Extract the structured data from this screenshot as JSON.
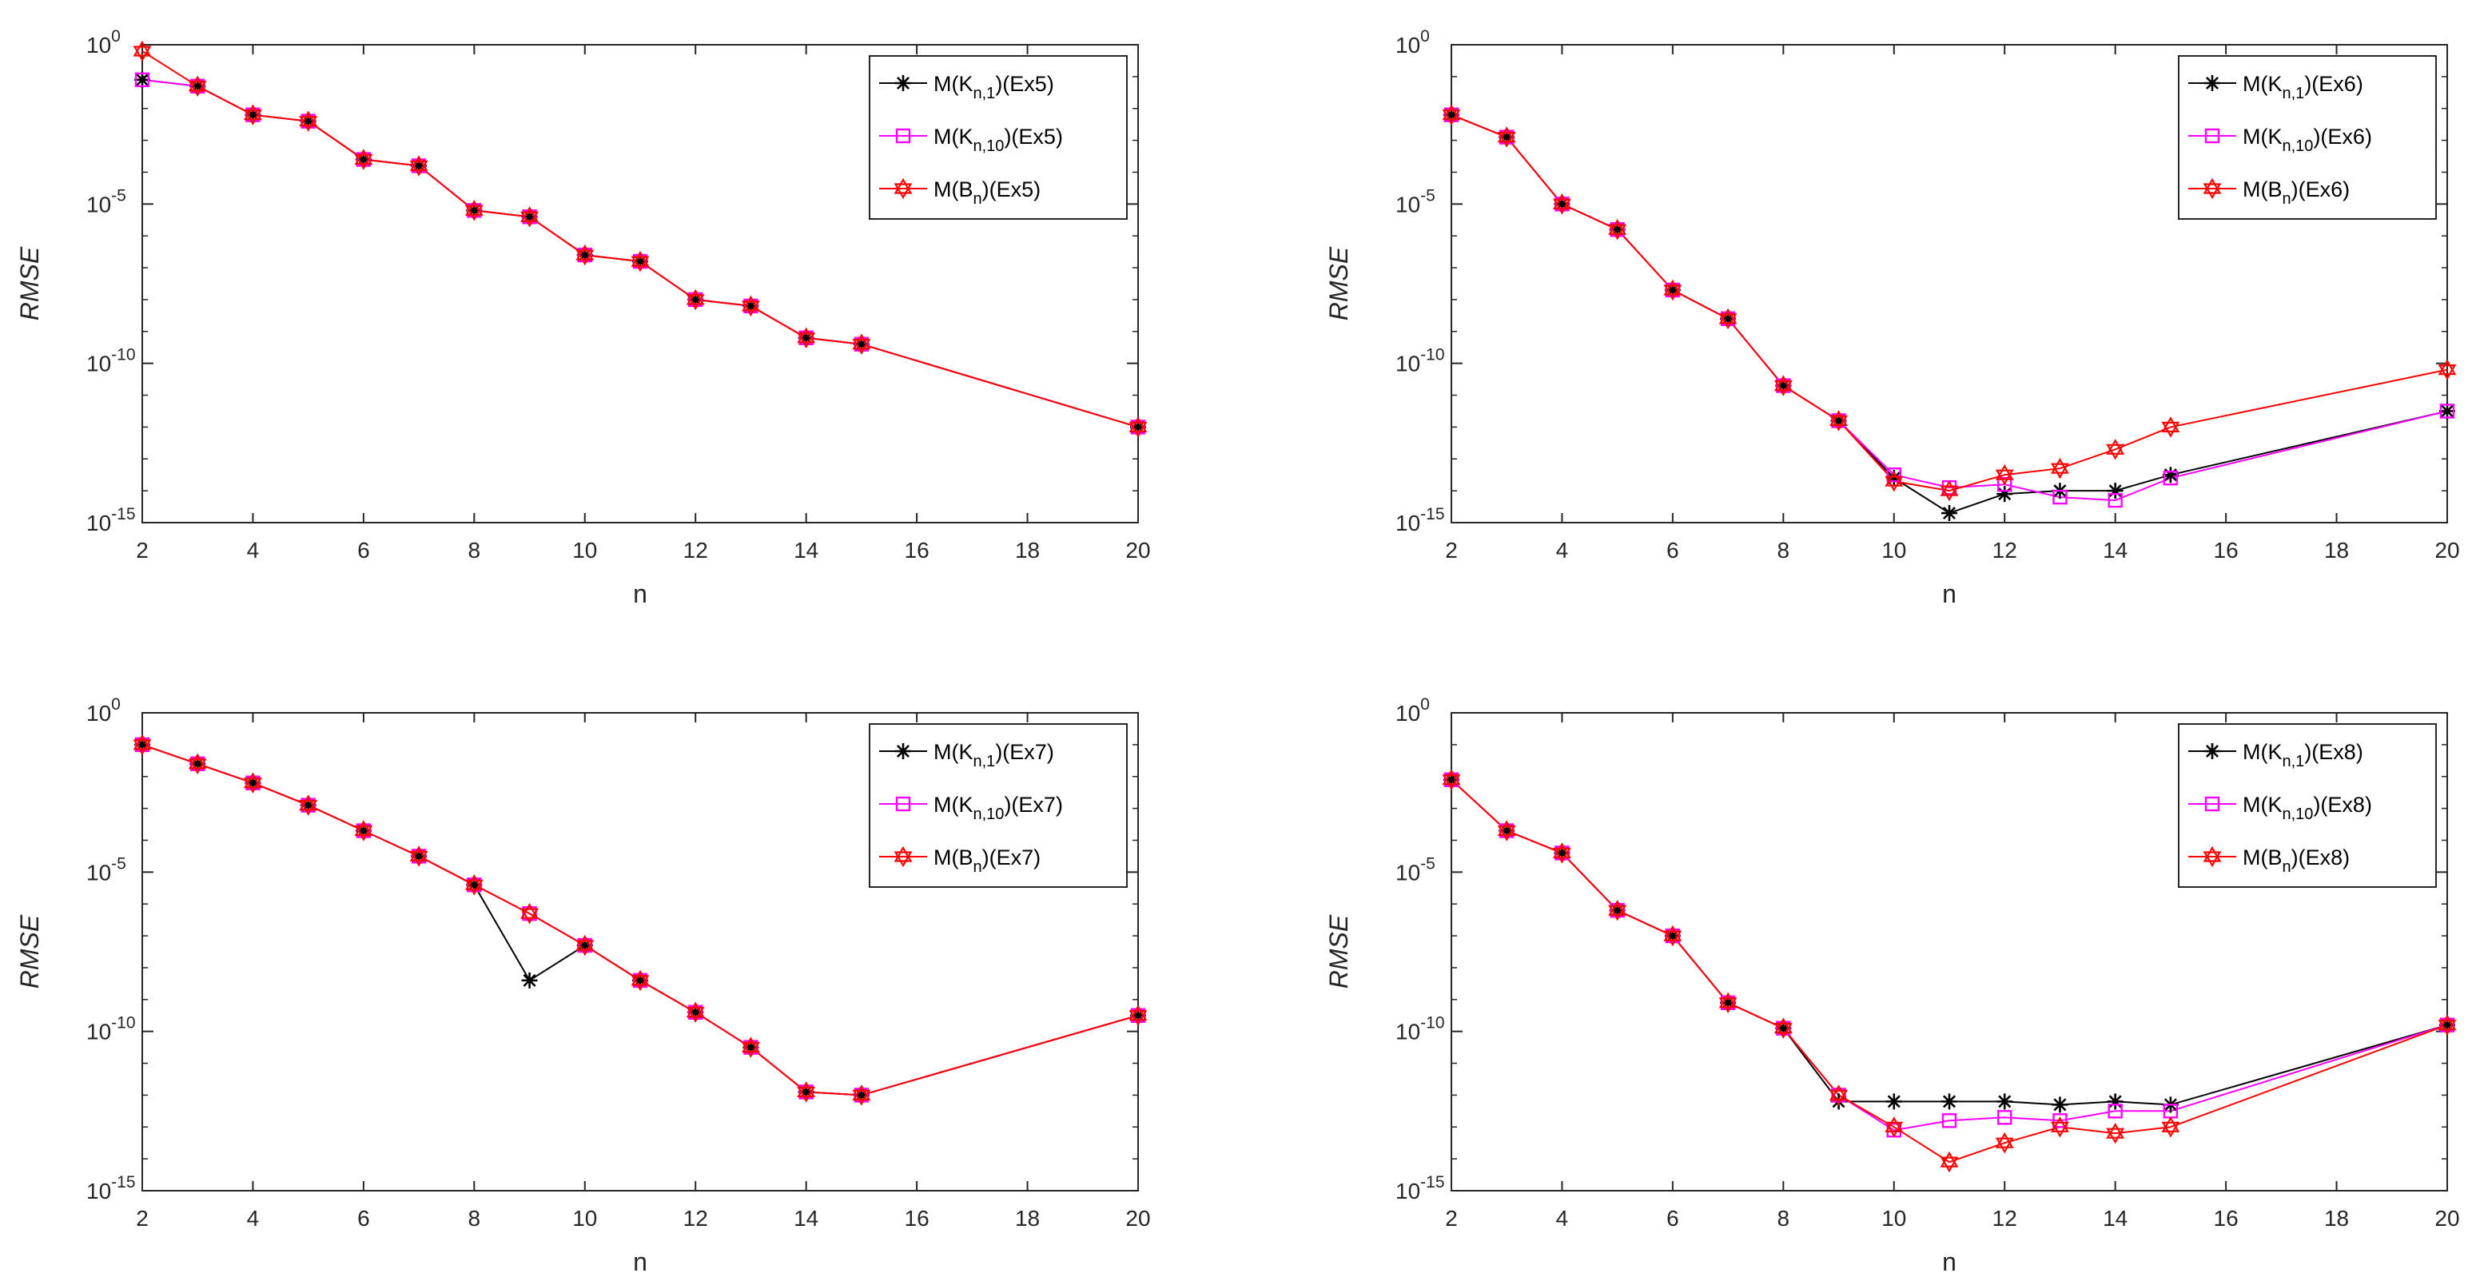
{
  "colors": {
    "axes": "#262626",
    "black_series": "#000000",
    "magenta_series": "#ff00ff",
    "red_series": "#ff0000"
  },
  "chart_data": [
    {
      "type": "line",
      "id": "ex5",
      "xlabel": "n",
      "ylabel": "RMSE",
      "yscale": "log",
      "xlim": [
        2,
        20
      ],
      "ylim_exp": [
        -15,
        0
      ],
      "x_ticks": [
        2,
        4,
        6,
        8,
        10,
        12,
        14,
        16,
        18,
        20
      ],
      "y_ticks": [
        {
          "base": "10",
          "exp": "0"
        },
        {
          "base": "10",
          "exp": "-5"
        },
        {
          "base": "10",
          "exp": "-10"
        },
        {
          "base": "10",
          "exp": "-15"
        }
      ],
      "legend_position": "top-right",
      "x": [
        2,
        3,
        4,
        5,
        6,
        7,
        8,
        9,
        10,
        11,
        12,
        13,
        14,
        15,
        20
      ],
      "series": [
        {
          "name": "M(K_{n,1})(Ex5)",
          "label_parts": [
            "M(K",
            "n,1",
            ")(Ex5)"
          ],
          "color": "#000000",
          "marker": "asterisk",
          "values_log10": [
            -1.1,
            -1.3,
            -2.2,
            -2.4,
            -3.6,
            -3.8,
            -5.2,
            -5.4,
            -6.6,
            -6.8,
            -8.0,
            -8.2,
            -9.2,
            -9.4,
            -12.0
          ]
        },
        {
          "name": "M(K_{n,10})(Ex5)",
          "label_parts": [
            "M(K",
            "n,10",
            ")(Ex5)"
          ],
          "color": "#ff00ff",
          "marker": "square",
          "values_log10": [
            -1.1,
            -1.3,
            -2.2,
            -2.4,
            -3.6,
            -3.8,
            -5.2,
            -5.4,
            -6.6,
            -6.8,
            -8.0,
            -8.2,
            -9.2,
            -9.4,
            -12.0
          ]
        },
        {
          "name": "M(B_n)(Ex5)",
          "label_parts": [
            "M(B",
            "n",
            ")(Ex5)"
          ],
          "color": "#ff0000",
          "marker": "hexagram",
          "values_log10": [
            -0.2,
            -1.3,
            -2.2,
            -2.4,
            -3.6,
            -3.8,
            -5.2,
            -5.4,
            -6.6,
            -6.8,
            -8.0,
            -8.2,
            -9.2,
            -9.4,
            -12.0
          ]
        }
      ]
    },
    {
      "type": "line",
      "id": "ex6",
      "xlabel": "n",
      "ylabel": "RMSE",
      "yscale": "log",
      "xlim": [
        2,
        20
      ],
      "ylim_exp": [
        -15,
        0
      ],
      "x_ticks": [
        2,
        4,
        6,
        8,
        10,
        12,
        14,
        16,
        18,
        20
      ],
      "y_ticks": [
        {
          "base": "10",
          "exp": "0"
        },
        {
          "base": "10",
          "exp": "-5"
        },
        {
          "base": "10",
          "exp": "-10"
        },
        {
          "base": "10",
          "exp": "-15"
        }
      ],
      "legend_position": "top-right",
      "x": [
        2,
        3,
        4,
        5,
        6,
        7,
        8,
        9,
        10,
        11,
        12,
        13,
        14,
        15,
        20
      ],
      "series": [
        {
          "name": "M(K_{n,1})(Ex6)",
          "label_parts": [
            "M(K",
            "n,1",
            ")(Ex6)"
          ],
          "color": "#000000",
          "marker": "asterisk",
          "values_log10": [
            -2.2,
            -2.9,
            -5.0,
            -5.8,
            -7.7,
            -8.6,
            -10.7,
            -11.8,
            -13.6,
            -14.7,
            -14.1,
            -14.0,
            -14.0,
            -13.5,
            -11.5
          ]
        },
        {
          "name": "M(K_{n,10})(Ex6)",
          "label_parts": [
            "M(K",
            "n,10",
            ")(Ex6)"
          ],
          "color": "#ff00ff",
          "marker": "square",
          "values_log10": [
            -2.2,
            -2.9,
            -5.0,
            -5.8,
            -7.7,
            -8.6,
            -10.7,
            -11.8,
            -13.5,
            -13.9,
            -13.8,
            -14.2,
            -14.3,
            -13.6,
            -11.5
          ]
        },
        {
          "name": "M(B_n)(Ex6)",
          "label_parts": [
            "M(B",
            "n",
            ")(Ex6)"
          ],
          "color": "#ff0000",
          "marker": "hexagram",
          "values_log10": [
            -2.2,
            -2.9,
            -5.0,
            -5.8,
            -7.7,
            -8.6,
            -10.7,
            -11.8,
            -13.7,
            -14.0,
            -13.5,
            -13.3,
            -12.7,
            -12.0,
            -10.2
          ]
        }
      ]
    },
    {
      "type": "line",
      "id": "ex7",
      "xlabel": "n",
      "ylabel": "RMSE",
      "yscale": "log",
      "xlim": [
        2,
        20
      ],
      "ylim_exp": [
        -15,
        0
      ],
      "x_ticks": [
        2,
        4,
        6,
        8,
        10,
        12,
        14,
        16,
        18,
        20
      ],
      "y_ticks": [
        {
          "base": "10",
          "exp": "0"
        },
        {
          "base": "10",
          "exp": "-5"
        },
        {
          "base": "10",
          "exp": "-10"
        },
        {
          "base": "10",
          "exp": "-15"
        }
      ],
      "legend_position": "top-right",
      "x": [
        2,
        3,
        4,
        5,
        6,
        7,
        8,
        9,
        10,
        11,
        12,
        13,
        14,
        15,
        20
      ],
      "series": [
        {
          "name": "M(K_{n,1})(Ex7)",
          "label_parts": [
            "M(K",
            "n,1",
            ")(Ex7)"
          ],
          "color": "#000000",
          "marker": "asterisk",
          "values_log10": [
            -1.0,
            -1.6,
            -2.2,
            -2.9,
            -3.7,
            -4.5,
            -5.4,
            -8.4,
            -7.3,
            -8.4,
            -9.4,
            -10.5,
            -11.9,
            -12.0,
            -9.5
          ]
        },
        {
          "name": "M(K_{n,10})(Ex7)",
          "label_parts": [
            "M(K",
            "n,10",
            ")(Ex7)"
          ],
          "color": "#ff00ff",
          "marker": "square",
          "values_log10": [
            -1.0,
            -1.6,
            -2.2,
            -2.9,
            -3.7,
            -4.5,
            -5.4,
            -6.3,
            -7.3,
            -8.4,
            -9.4,
            -10.5,
            -11.9,
            -12.0,
            -9.5
          ]
        },
        {
          "name": "M(B_n)(Ex7)",
          "label_parts": [
            "M(B",
            "n",
            ")(Ex7)"
          ],
          "color": "#ff0000",
          "marker": "hexagram",
          "values_log10": [
            -1.0,
            -1.6,
            -2.2,
            -2.9,
            -3.7,
            -4.5,
            -5.4,
            -6.3,
            -7.3,
            -8.4,
            -9.4,
            -10.5,
            -11.9,
            -12.0,
            -9.5
          ]
        }
      ]
    },
    {
      "type": "line",
      "id": "ex8",
      "xlabel": "n",
      "ylabel": "RMSE",
      "yscale": "log",
      "xlim": [
        2,
        20
      ],
      "ylim_exp": [
        -15,
        0
      ],
      "x_ticks": [
        2,
        4,
        6,
        8,
        10,
        12,
        14,
        16,
        18,
        20
      ],
      "y_ticks": [
        {
          "base": "10",
          "exp": "0"
        },
        {
          "base": "10",
          "exp": "-5"
        },
        {
          "base": "10",
          "exp": "-10"
        },
        {
          "base": "10",
          "exp": "-15"
        }
      ],
      "legend_position": "top-right",
      "x": [
        2,
        3,
        4,
        5,
        6,
        7,
        8,
        9,
        10,
        11,
        12,
        13,
        14,
        15,
        20
      ],
      "series": [
        {
          "name": "M(K_{n,1})(Ex8)",
          "label_parts": [
            "M(K",
            "n,1",
            ")(Ex8)"
          ],
          "color": "#000000",
          "marker": "asterisk",
          "values_log10": [
            -2.1,
            -3.7,
            -4.4,
            -6.2,
            -7.0,
            -9.1,
            -9.9,
            -12.2,
            -12.2,
            -12.2,
            -12.2,
            -12.3,
            -12.2,
            -12.3,
            -9.8
          ]
        },
        {
          "name": "M(K_{n,10})(Ex8)",
          "label_parts": [
            "M(K",
            "n,10",
            ")(Ex8)"
          ],
          "color": "#ff00ff",
          "marker": "square",
          "values_log10": [
            -2.1,
            -3.7,
            -4.4,
            -6.2,
            -7.0,
            -9.1,
            -9.9,
            -12.0,
            -13.1,
            -12.8,
            -12.7,
            -12.8,
            -12.5,
            -12.5,
            -9.8
          ]
        },
        {
          "name": "M(B_n)(Ex8)",
          "label_parts": [
            "M(B",
            "n",
            ")(Ex8)"
          ],
          "color": "#ff0000",
          "marker": "hexagram",
          "values_log10": [
            -2.1,
            -3.7,
            -4.4,
            -6.2,
            -7.0,
            -9.1,
            -9.9,
            -12.0,
            -13.0,
            -14.1,
            -13.5,
            -13.0,
            -13.2,
            -13.0,
            -9.8
          ]
        }
      ]
    }
  ]
}
